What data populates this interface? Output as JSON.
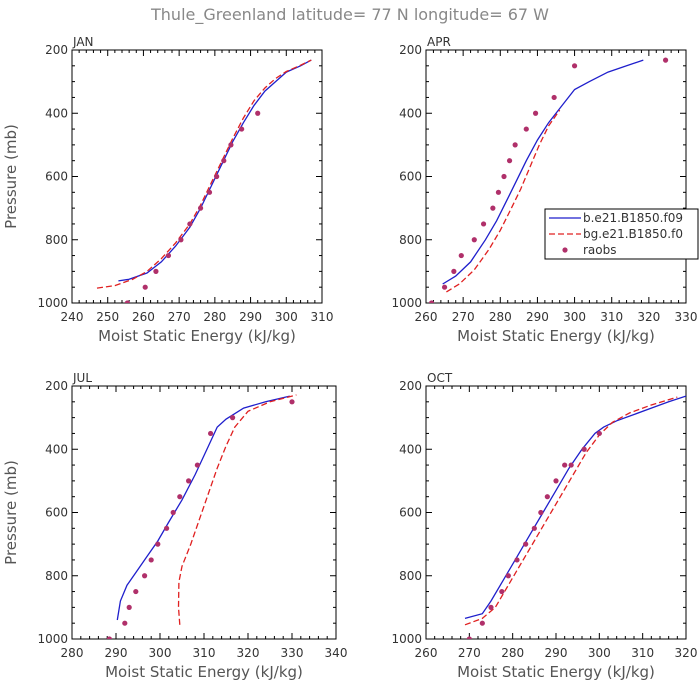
{
  "page_title": "Thule_Greenland  latitude= 77 N longitude= 67 W",
  "colors": {
    "model_b": "#1f1fcc",
    "model_bg": "#e02020",
    "raobs": "#b0306a",
    "axis": "#000000"
  },
  "legend": {
    "entries": [
      {
        "label": "b.e21.B1850.f09",
        "style": "solid",
        "color": "#1f1fcc"
      },
      {
        "label": "bg.e21.B1850.f0",
        "style": "dashed",
        "color": "#e02020"
      },
      {
        "label": "raobs",
        "style": "dots",
        "color": "#b0306a"
      }
    ]
  },
  "chart_data": [
    {
      "type": "line",
      "title": "JAN",
      "xlabel": "Moist Static Energy (kJ/kg)",
      "ylabel": "Pressure (mb)",
      "xlim": [
        240,
        310
      ],
      "ylim": [
        1000,
        200
      ],
      "xticks": [
        240,
        250,
        260,
        270,
        280,
        290,
        300,
        310
      ],
      "yticks": [
        200,
        400,
        600,
        800,
        1000
      ],
      "series": [
        {
          "name": "b.e21.B1850.f09",
          "style": "solid",
          "x": [
            253,
            256,
            261,
            265,
            269,
            273,
            276,
            279,
            282,
            285,
            288,
            291,
            294,
            297,
            300,
            304,
            307
          ],
          "y": [
            930,
            925,
            905,
            870,
            820,
            760,
            700,
            630,
            560,
            490,
            430,
            375,
            330,
            300,
            270,
            250,
            232
          ]
        },
        {
          "name": "bg.e21.B1850.f0",
          "style": "dashed",
          "x": [
            247,
            252,
            257,
            261,
            265,
            269,
            273,
            276,
            279,
            282,
            285,
            288,
            291,
            294,
            297,
            300,
            304,
            307
          ],
          "y": [
            953,
            945,
            925,
            900,
            860,
            810,
            750,
            690,
            620,
            550,
            480,
            415,
            360,
            320,
            290,
            268,
            248,
            232
          ]
        },
        {
          "name": "raobs",
          "style": "dots",
          "x": [
            255.5,
            260.5,
            263.5,
            267,
            270.5,
            273,
            276,
            278.5,
            280.5,
            282.5,
            284.5,
            287.5,
            292
          ],
          "y": [
            1000,
            950,
            900,
            850,
            800,
            750,
            700,
            650,
            600,
            550,
            500,
            450,
            400
          ]
        }
      ]
    },
    {
      "type": "line",
      "title": "APR",
      "xlabel": "Moist Static Energy (kJ/kg)",
      "ylabel": "",
      "xlim": [
        260,
        330
      ],
      "ylim": [
        1000,
        200
      ],
      "xticks": [
        260,
        270,
        280,
        290,
        300,
        310,
        320,
        330
      ],
      "yticks": [
        200,
        400,
        600,
        800,
        1000
      ],
      "series": [
        {
          "name": "b.e21.B1850.f09",
          "style": "solid",
          "x": [
            264.5,
            268,
            272,
            276,
            279,
            282,
            284.5,
            287,
            290,
            293,
            296,
            300,
            304,
            309,
            314,
            318.5
          ],
          "y": [
            940,
            915,
            870,
            800,
            740,
            670,
            610,
            550,
            485,
            430,
            385,
            325,
            300,
            270,
            250,
            232
          ]
        },
        {
          "name": "bg.e21.B1850.f0",
          "style": "dashed",
          "x": [
            265.5,
            269,
            273,
            277,
            280,
            283,
            285.5,
            288,
            290.5,
            293,
            296
          ],
          "y": [
            965,
            940,
            895,
            830,
            770,
            700,
            640,
            570,
            500,
            440,
            390
          ]
        },
        {
          "name": "raobs",
          "style": "dots",
          "x": [
            261.5,
            265,
            267.5,
            269.5,
            273,
            275.5,
            278,
            279.5,
            281,
            282.5,
            284,
            287,
            289.5,
            294.5,
            300,
            324.5
          ],
          "y": [
            1000,
            950,
            900,
            850,
            800,
            750,
            700,
            650,
            600,
            550,
            500,
            450,
            400,
            350,
            250,
            232
          ]
        }
      ]
    },
    {
      "type": "line",
      "title": "JUL",
      "xlabel": "Moist Static Energy (kJ/kg)",
      "ylabel": "Pressure (mb)",
      "xlim": [
        280,
        340
      ],
      "ylim": [
        1000,
        200
      ],
      "xticks": [
        280,
        290,
        300,
        310,
        320,
        330,
        340
      ],
      "yticks": [
        200,
        400,
        600,
        800,
        1000
      ],
      "series": [
        {
          "name": "b.e21.B1850.f09",
          "style": "solid",
          "x": [
            290.3,
            291,
            292.5,
            294.5,
            297,
            299.5,
            302,
            305,
            308,
            311,
            313,
            315,
            319,
            324,
            329.5
          ],
          "y": [
            940,
            880,
            830,
            790,
            740,
            690,
            630,
            560,
            480,
            390,
            330,
            305,
            270,
            250,
            232
          ]
        },
        {
          "name": "bg.e21.B1850.f0",
          "style": "dashed",
          "x": [
            304.5,
            304.2,
            304.3,
            305,
            307,
            309,
            311,
            313,
            315,
            317,
            320,
            325,
            331
          ],
          "y": [
            955,
            900,
            820,
            770,
            700,
            620,
            540,
            460,
            390,
            330,
            280,
            250,
            228
          ]
        },
        {
          "name": "raobs",
          "style": "dots",
          "x": [
            288.5,
            292,
            293,
            294.5,
            296.5,
            298,
            299.5,
            301.5,
            303,
            304.5,
            306.5,
            308.5,
            311.5,
            316.5,
            330
          ],
          "y": [
            1000,
            950,
            900,
            850,
            800,
            750,
            700,
            650,
            600,
            550,
            500,
            450,
            350,
            300,
            250
          ]
        }
      ]
    },
    {
      "type": "line",
      "title": "OCT",
      "xlabel": "Moist Static Energy (kJ/kg)",
      "ylabel": "",
      "xlim": [
        260,
        320
      ],
      "ylim": [
        1000,
        200
      ],
      "xticks": [
        260,
        270,
        280,
        290,
        300,
        310,
        320
      ],
      "yticks": [
        200,
        400,
        600,
        800,
        1000
      ],
      "series": [
        {
          "name": "b.e21.B1850.f09",
          "style": "solid",
          "x": [
            269,
            273,
            275,
            278,
            281,
            284,
            287,
            290,
            293,
            296,
            299,
            301,
            304,
            308,
            312,
            316,
            320
          ],
          "y": [
            935,
            920,
            880,
            810,
            740,
            670,
            600,
            530,
            460,
            400,
            350,
            330,
            310,
            290,
            270,
            250,
            232
          ]
        },
        {
          "name": "bg.e21.B1850.f0",
          "style": "dashed",
          "x": [
            269,
            273,
            276,
            279,
            282,
            285,
            288,
            291,
            294,
            297,
            300,
            303,
            307,
            312,
            318
          ],
          "y": [
            955,
            935,
            900,
            830,
            760,
            690,
            620,
            550,
            480,
            410,
            355,
            315,
            285,
            260,
            235
          ]
        },
        {
          "name": "raobs",
          "style": "dots",
          "x": [
            270,
            273,
            275,
            277.5,
            279,
            281,
            283,
            285,
            286.5,
            288,
            290,
            292,
            293.5,
            296.5,
            300
          ],
          "y": [
            1000,
            950,
            900,
            850,
            800,
            750,
            700,
            650,
            600,
            550,
            500,
            450,
            450,
            400,
            350
          ]
        }
      ]
    }
  ]
}
